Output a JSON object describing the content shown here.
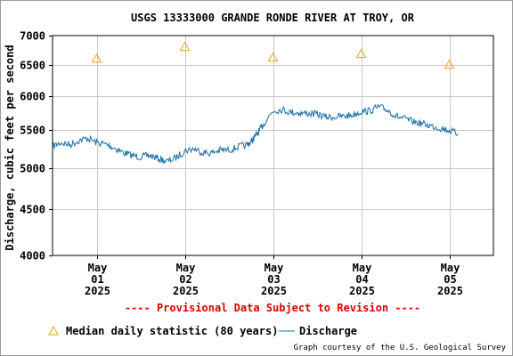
{
  "chart_data": {
    "type": "line",
    "title": "USGS 13333000 GRANDE RONDE RIVER AT TROY, OR",
    "ylabel": "Discharge, cubic feet per second",
    "xlabel": "",
    "ylim": [
      4000,
      7000
    ],
    "y_scale": "log",
    "yticks": [
      4000,
      4500,
      5000,
      5500,
      6000,
      6500,
      7000
    ],
    "ytick_labels": [
      "4000",
      "4500",
      "5000",
      "5500",
      "6000",
      "6500",
      "7000"
    ],
    "xlim": [
      0.5,
      5.5
    ],
    "xticks": [
      {
        "pos": 1,
        "lines": [
          "May",
          "01",
          "2025"
        ]
      },
      {
        "pos": 2,
        "lines": [
          "May",
          "02",
          "2025"
        ]
      },
      {
        "pos": 3,
        "lines": [
          "May",
          "03",
          "2025"
        ]
      },
      {
        "pos": 4,
        "lines": [
          "May",
          "04",
          "2025"
        ]
      },
      {
        "pos": 5,
        "lines": [
          "May",
          "05",
          "2025"
        ]
      }
    ],
    "grid": true,
    "series": [
      {
        "name": "Discharge",
        "kind": "line",
        "color": "#1a6fa8",
        "x": [
          0.5,
          0.6,
          0.7,
          0.8,
          0.9,
          1.0,
          1.1,
          1.2,
          1.3,
          1.4,
          1.5,
          1.6,
          1.7,
          1.8,
          1.9,
          2.0,
          2.1,
          2.2,
          2.3,
          2.4,
          2.5,
          2.6,
          2.7,
          2.75,
          2.8,
          2.85,
          2.9,
          3.0,
          3.1,
          3.2,
          3.3,
          3.4,
          3.5,
          3.6,
          3.7,
          3.8,
          3.9,
          4.0,
          4.1,
          4.2,
          4.3,
          4.4,
          4.5,
          4.6,
          4.7,
          4.8,
          4.9,
          5.0,
          5.1
        ],
        "y": [
          5280,
          5330,
          5300,
          5360,
          5390,
          5330,
          5310,
          5260,
          5200,
          5160,
          5140,
          5160,
          5120,
          5080,
          5130,
          5220,
          5250,
          5200,
          5190,
          5230,
          5230,
          5270,
          5300,
          5340,
          5420,
          5500,
          5600,
          5780,
          5800,
          5760,
          5750,
          5740,
          5730,
          5690,
          5690,
          5700,
          5720,
          5770,
          5780,
          5840,
          5790,
          5700,
          5660,
          5620,
          5590,
          5560,
          5530,
          5500,
          5450
        ]
      },
      {
        "name": "Median daily statistic (80 years)",
        "kind": "marker",
        "marker": "triangle",
        "color": "#e8a317",
        "x": [
          1,
          2,
          3,
          4,
          5
        ],
        "y": [
          6600,
          6800,
          6620,
          6680,
          6500
        ]
      }
    ],
    "legend": {
      "placement": "bottom",
      "entries": [
        {
          "label": "Median daily statistic (80 years)",
          "symbol": "triangle",
          "color": "#e8a317"
        },
        {
          "label": "Discharge",
          "symbol": "line",
          "color": "#1a6fa8"
        }
      ]
    },
    "annotations": {
      "provisional": "---- Provisional Data Subject to Revision ----",
      "credit": "Graph courtesy of the U.S. Geological Survey"
    },
    "colors": {
      "provisional_text": "#dd0000",
      "grid": "#c8c8c8",
      "axis": "#000000"
    }
  }
}
